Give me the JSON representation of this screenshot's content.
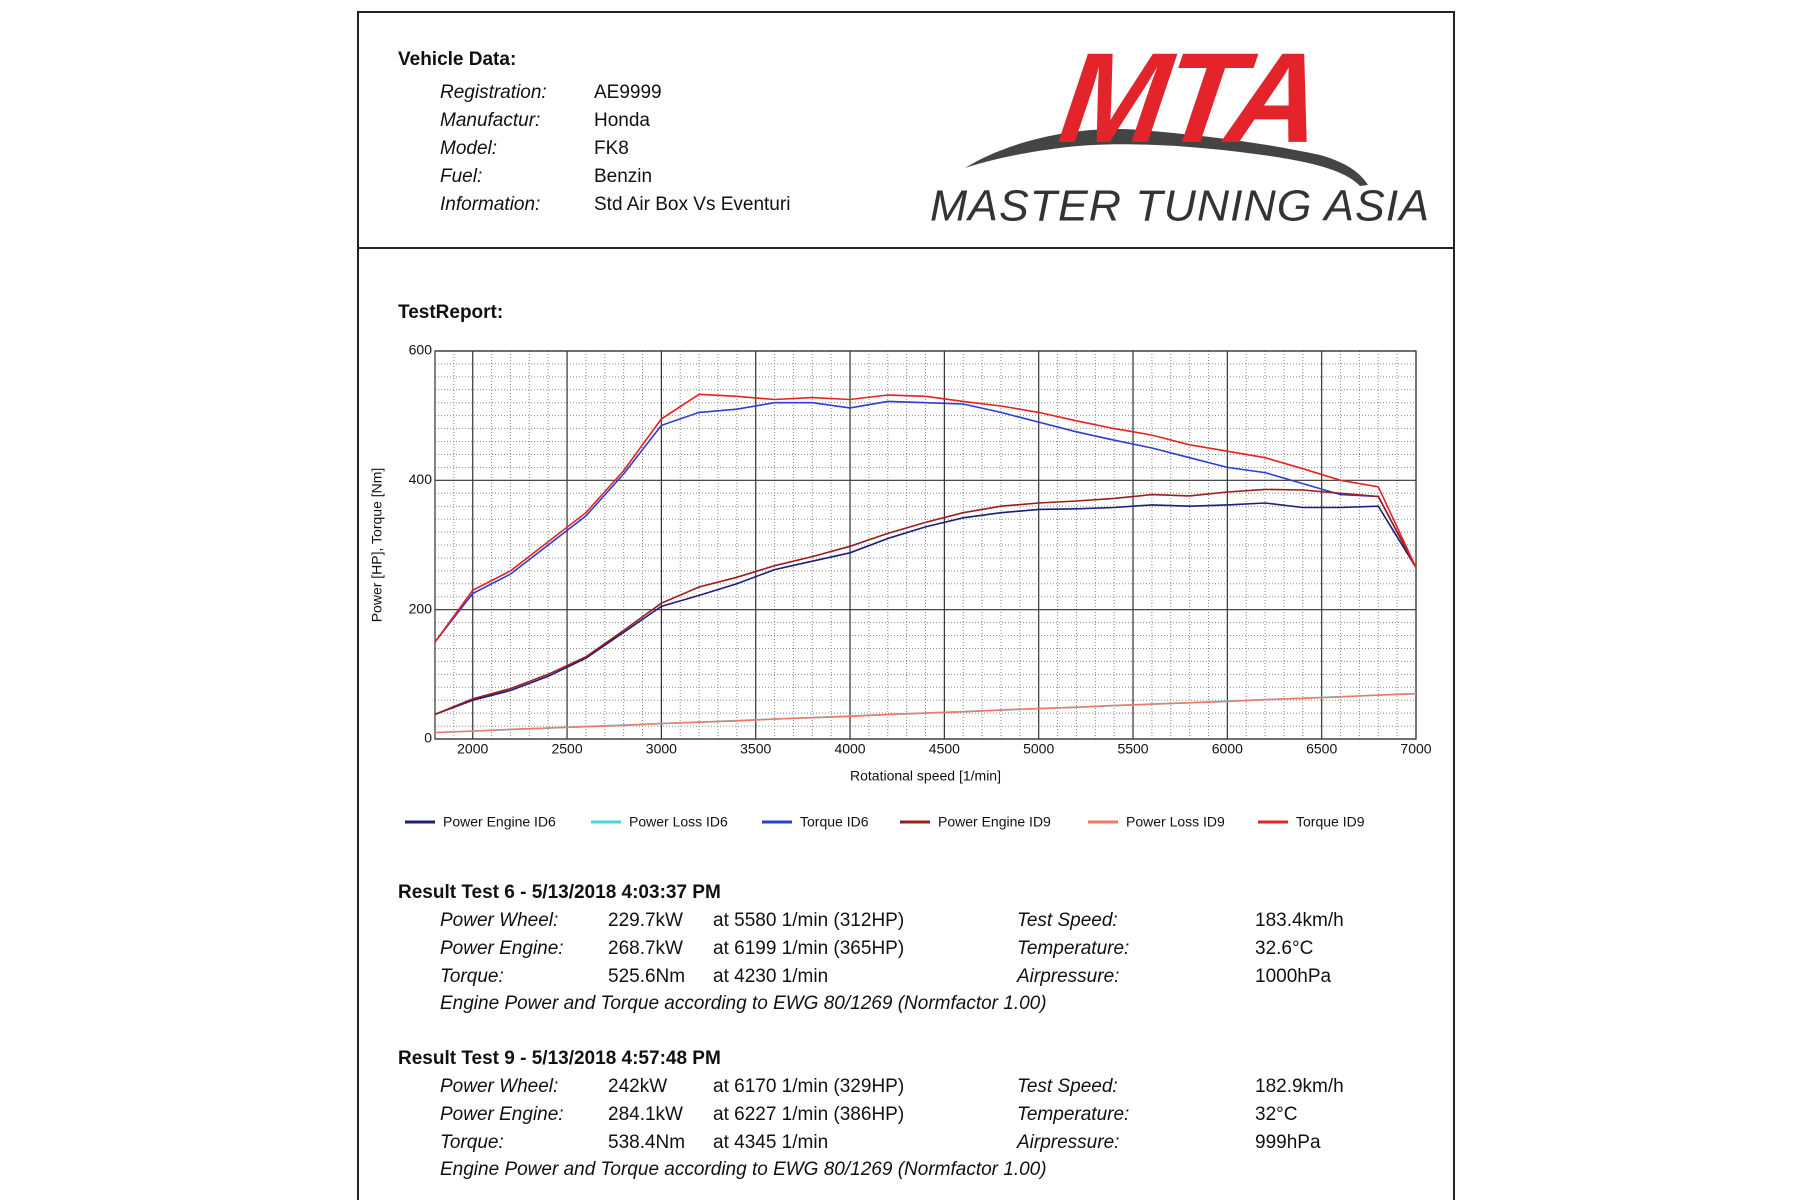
{
  "vehicle": {
    "title": "Vehicle Data:",
    "rows": [
      {
        "label": "Registration:",
        "value": "AE9999"
      },
      {
        "label": "Manufactur:",
        "value": "Honda"
      },
      {
        "label": "Model:",
        "value": "FK8"
      },
      {
        "label": "Fuel:",
        "value": "Benzin"
      },
      {
        "label": "Information:",
        "value": "Std Air Box Vs Eventuri"
      }
    ]
  },
  "logo": {
    "mark": "MTA",
    "text": "MASTER TUNING ASIA"
  },
  "report_title": "TestReport:",
  "chart_data": {
    "type": "line",
    "xlabel": "Rotational  speed [1/min]",
    "ylabel": "Power [HP], Torque [Nm]",
    "x": [
      1800,
      2000,
      2200,
      2400,
      2600,
      2800,
      3000,
      3200,
      3400,
      3600,
      3800,
      4000,
      4200,
      4400,
      4600,
      4800,
      5000,
      5200,
      5400,
      5600,
      5800,
      6000,
      6200,
      6400,
      6600,
      6800,
      7000
    ],
    "xlim": [
      1800,
      7000
    ],
    "xticks": [
      2000,
      2500,
      3000,
      3500,
      4000,
      4500,
      5000,
      5500,
      6000,
      6500,
      7000
    ],
    "ylim": [
      0,
      600
    ],
    "yticks": [
      0,
      200,
      400,
      600
    ],
    "grid": true,
    "series": [
      {
        "name": "Power Engine ID6",
        "color": "#1a1f7a",
        "values": [
          38,
          60,
          75,
          97,
          125,
          165,
          205,
          222,
          240,
          262,
          275,
          288,
          310,
          328,
          342,
          350,
          355,
          356,
          358,
          362,
          360,
          362,
          365,
          358,
          358,
          360,
          265
        ]
      },
      {
        "name": "Power Loss ID6",
        "color": "#3fd8e6",
        "values": [
          10,
          12.3,
          14.6,
          16.9,
          19.2,
          21.5,
          23.8,
          26.2,
          28.5,
          30.8,
          33.1,
          35.4,
          37.7,
          40,
          42.3,
          44.6,
          46.9,
          49.2,
          51.5,
          53.8,
          56.2,
          58.5,
          60.8,
          63.1,
          65.4,
          67.7,
          70
        ]
      },
      {
        "name": "Torque ID6",
        "color": "#2b3fd0",
        "values": [
          150,
          225,
          255,
          300,
          345,
          410,
          485,
          505,
          510,
          520,
          520,
          512,
          522,
          520,
          518,
          505,
          490,
          475,
          462,
          450,
          435,
          420,
          412,
          395,
          378,
          375,
          265
        ]
      },
      {
        "name": "Power Engine ID9",
        "color": "#9b1c1c",
        "values": [
          38,
          62,
          78,
          100,
          127,
          168,
          210,
          235,
          250,
          268,
          282,
          298,
          318,
          335,
          350,
          360,
          365,
          368,
          372,
          378,
          376,
          382,
          386,
          385,
          380,
          375,
          265
        ]
      },
      {
        "name": "Power Loss ID9",
        "color": "#f07a6a",
        "values": [
          10,
          12,
          15,
          17,
          19,
          21,
          24,
          26,
          28,
          31,
          33,
          35,
          38,
          40,
          42,
          45,
          47,
          49,
          52,
          54,
          56,
          58,
          61,
          63,
          65,
          68,
          70
        ]
      },
      {
        "name": "Torque ID9",
        "color": "#e62222",
        "values": [
          150,
          230,
          260,
          305,
          350,
          415,
          495,
          533,
          530,
          525,
          528,
          525,
          532,
          530,
          522,
          515,
          505,
          492,
          480,
          470,
          455,
          445,
          435,
          418,
          400,
          390,
          265
        ]
      }
    ]
  },
  "results": [
    {
      "title": "Result Test 6 - 5/13/2018 4:03:37 PM",
      "rows": [
        {
          "label": "Power Wheel:",
          "value": "229.7kW",
          "at": "at 5580 1/min (312HP)",
          "label2": "Test Speed:",
          "value2": "183.4km/h"
        },
        {
          "label": "Power Engine:",
          "value": "268.7kW",
          "at": "at 6199 1/min (365HP)",
          "label2": "Temperature:",
          "value2": "32.6°C"
        },
        {
          "label": "Torque:",
          "value": "525.6Nm",
          "at": "at 4230 1/min",
          "label2": "Airpressure:",
          "value2": "1000hPa"
        }
      ],
      "note": "Engine Power and Torque according to EWG 80/1269 (Normfactor 1.00)"
    },
    {
      "title": "Result Test 9 - 5/13/2018 4:57:48 PM",
      "rows": [
        {
          "label": "Power Wheel:",
          "value": "242kW",
          "at": "at 6170 1/min (329HP)",
          "label2": "Test Speed:",
          "value2": "182.9km/h"
        },
        {
          "label": "Power Engine:",
          "value": "284.1kW",
          "at": "at 6227 1/min (386HP)",
          "label2": "Temperature:",
          "value2": "32°C"
        },
        {
          "label": "Torque:",
          "value": "538.4Nm",
          "at": "at 4345 1/min",
          "label2": "Airpressure:",
          "value2": "999hPa"
        }
      ],
      "note": "Engine Power and Torque according to EWG 80/1269 (Normfactor 1.00)"
    }
  ]
}
